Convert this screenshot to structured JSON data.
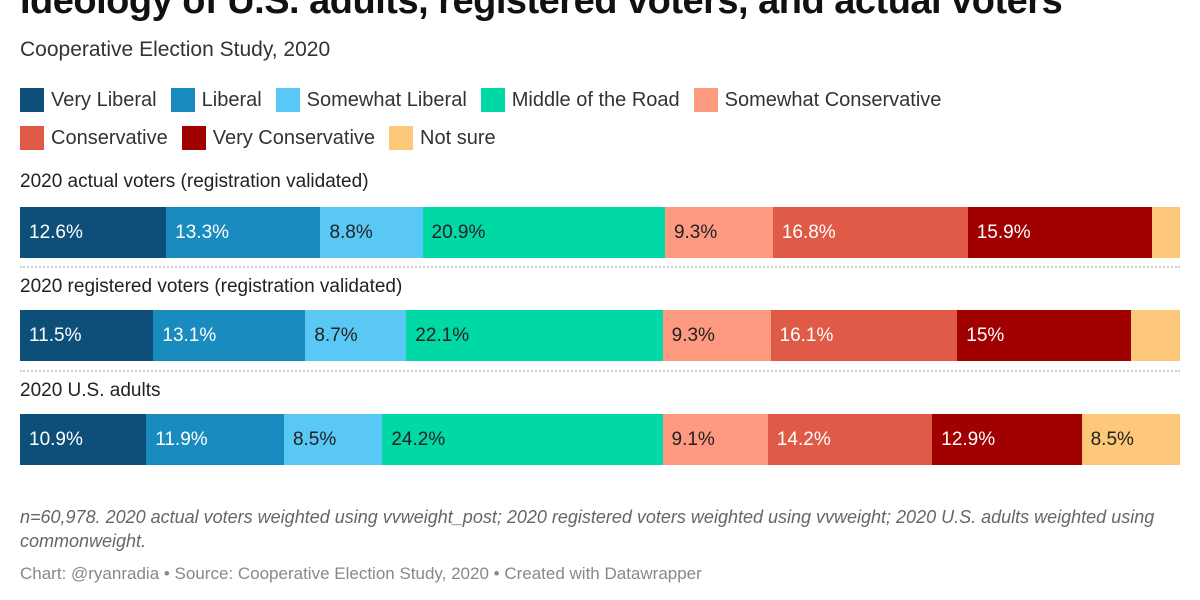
{
  "chart_data": {
    "type": "bar",
    "stacked": true,
    "orientation": "horizontal",
    "title": "Ideology of U.S. adults, registered voters, and actual voters",
    "subtitle": "Cooperative Election Study, 2020",
    "legend_position": "top",
    "categories": [
      "2020 actual voters (registration validated)",
      "2020 registered voters (registration validated)",
      "2020 U.S. adults"
    ],
    "series": [
      {
        "name": "Very Liberal",
        "color": "#0d4f78",
        "values": [
          12.6,
          11.5,
          10.9
        ],
        "labels": [
          "12.6%",
          "11.5%",
          "10.9%"
        ],
        "text_color": "#ffffff"
      },
      {
        "name": "Liberal",
        "color": "#1a8bbf",
        "values": [
          13.3,
          13.1,
          11.9
        ],
        "labels": [
          "13.3%",
          "13.1%",
          "11.9%"
        ],
        "text_color": "#ffffff"
      },
      {
        "name": "Somewhat Liberal",
        "color": "#5ac8f4",
        "values": [
          8.8,
          8.7,
          8.5
        ],
        "labels": [
          "8.8%",
          "8.7%",
          "8.5%"
        ],
        "text_color": "#222222"
      },
      {
        "name": "Middle of the Road",
        "color": "#00d8a5",
        "values": [
          20.9,
          22.1,
          24.2
        ],
        "labels": [
          "20.9%",
          "22.1%",
          "24.2%"
        ],
        "text_color": "#222222"
      },
      {
        "name": "Somewhat Conservative",
        "color": "#fd9a80",
        "values": [
          9.3,
          9.3,
          9.1
        ],
        "labels": [
          "9.3%",
          "9.3%",
          "9.1%"
        ],
        "text_color": "#222222"
      },
      {
        "name": "Conservative",
        "color": "#e05b47",
        "values": [
          16.8,
          16.1,
          14.2
        ],
        "labels": [
          "16.8%",
          "16.1%",
          "14.2%"
        ],
        "text_color": "#ffffff"
      },
      {
        "name": "Very Conservative",
        "color": "#a00000",
        "values": [
          15.9,
          15,
          12.9
        ],
        "labels": [
          "15.9%",
          "15%",
          "12.9%"
        ],
        "text_color": "#ffffff"
      },
      {
        "name": "Not sure",
        "color": "#fec87a",
        "values": [
          2.4,
          4.2,
          8.5
        ],
        "labels": [
          "",
          "",
          "8.5%"
        ],
        "text_color": "#222222"
      }
    ],
    "xlim": [
      0,
      100
    ]
  },
  "notes": "n=60,978. 2020 actual voters weighted using vvweight_post; 2020 registered voters weighted using vvweight; 2020 U.S. adults weighted using commonweight.",
  "credit": "Chart: @ryanradia • Source: Cooperative Election Study, 2020 • Created with Datawrapper"
}
